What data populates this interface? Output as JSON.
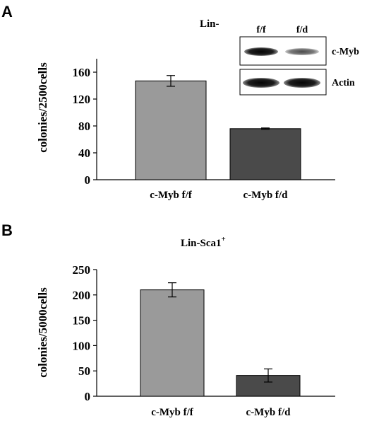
{
  "chart_data": [
    {
      "type": "bar",
      "panel": "A",
      "title": "Lin-",
      "ylabel": "colonies/2500cells",
      "categories": [
        "c-Myb f/f",
        "c-Myb f/d"
      ],
      "values": [
        147,
        76
      ],
      "errors": [
        8,
        1
      ],
      "ylim": [
        0,
        180
      ],
      "yticks": [
        "0",
        "40",
        "80",
        "120",
        "160"
      ],
      "colors": [
        "#9a9a9a",
        "#4a4a4a"
      ],
      "inset": {
        "lanes": [
          "f/f",
          "f/d"
        ],
        "bands": [
          "c-Myb",
          "Actin"
        ]
      }
    },
    {
      "type": "bar",
      "panel": "B",
      "title": "Lin-Sca1",
      "title_sup": "+",
      "ylabel": "colonies/5000cells",
      "categories": [
        "c-Myb f/f",
        "c-Myb f/d"
      ],
      "values": [
        210,
        41
      ],
      "errors": [
        14,
        13
      ],
      "ylim": [
        0,
        250
      ],
      "yticks": [
        "0",
        "50",
        "100",
        "150",
        "200",
        "250"
      ],
      "colors": [
        "#9a9a9a",
        "#4a4a4a"
      ]
    }
  ]
}
